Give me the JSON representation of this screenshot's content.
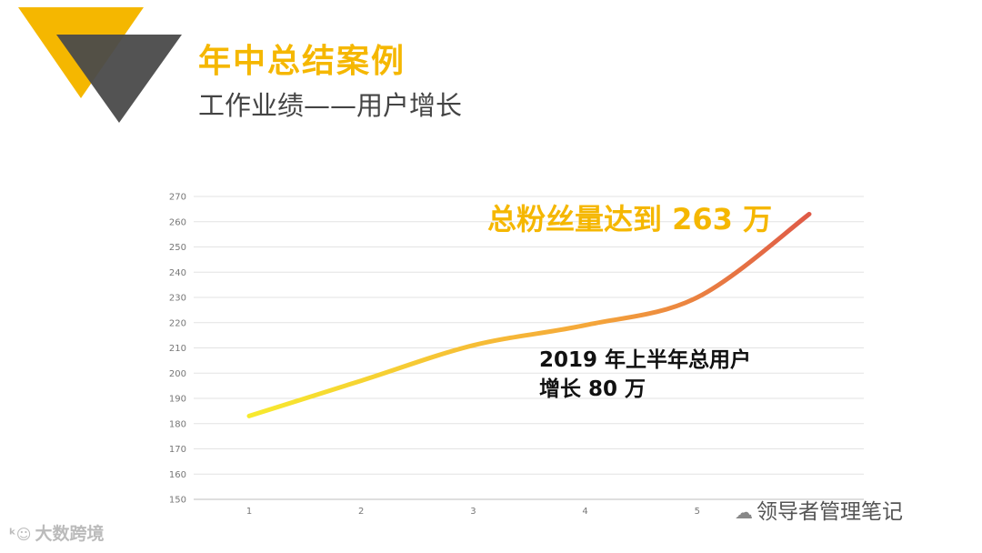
{
  "header": {
    "title": "年中总结案例",
    "subtitle": "工作业绩——用户增长"
  },
  "colors": {
    "accent": "#f5b700",
    "dark_triangle": "#4a4a4a",
    "line_start": "#f7ea2e",
    "line_end": "#df5a47"
  },
  "annotations": {
    "total": "总粉丝量达到 263 万",
    "note_line1": "2019 年上半年总用户",
    "note_line2": "增长 80 万"
  },
  "watermarks": {
    "left_icon": "kuajing-logo-icon",
    "left": "大数跨境",
    "right_icon": "wechat-icon",
    "right": "领导者管理笔记"
  },
  "chart_data": {
    "type": "line",
    "title": "",
    "xlabel": "",
    "ylabel": "",
    "x": [
      1,
      2,
      3,
      4,
      5,
      6
    ],
    "series": [
      {
        "values": [
          183,
          197,
          211,
          219,
          230,
          263
        ]
      }
    ],
    "x_tick_labels": [
      "1",
      "2",
      "3",
      "4",
      "5"
    ],
    "yticks": [
      150,
      160,
      170,
      180,
      190,
      200,
      210,
      220,
      230,
      240,
      250,
      260,
      270
    ],
    "ylim": [
      150,
      270
    ],
    "grid": true,
    "legend": "none",
    "line_style": "smooth gradient yellow to red"
  }
}
